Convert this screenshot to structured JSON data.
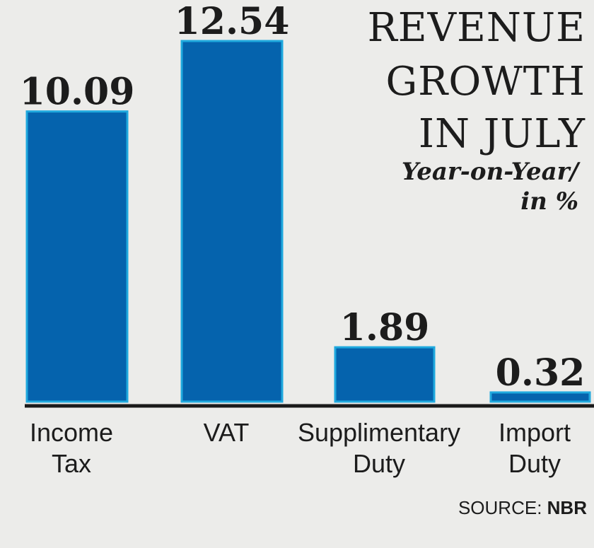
{
  "chart_data": {
    "type": "bar",
    "title_lines": [
      "REVENUE",
      "GROWTH",
      "IN JULY"
    ],
    "subtitle_lines": [
      "Year-on-Year/",
      "in %"
    ],
    "categories": [
      [
        "Income",
        "Tax"
      ],
      [
        "VAT"
      ],
      [
        "Supplimentary",
        "Duty"
      ],
      [
        "Import",
        "Duty"
      ]
    ],
    "values": [
      10.09,
      12.54,
      1.89,
      0.32
    ],
    "value_labels": [
      "10.09",
      "12.54",
      "1.89",
      "0.32"
    ],
    "ylim": [
      0,
      12.54
    ],
    "grid": false,
    "bar_color": "#0563ad",
    "bar_edge_color": "#1fa9de",
    "baseline_color": "#1a1a1a"
  },
  "source": {
    "label": "SOURCE:",
    "name": "NBR"
  }
}
